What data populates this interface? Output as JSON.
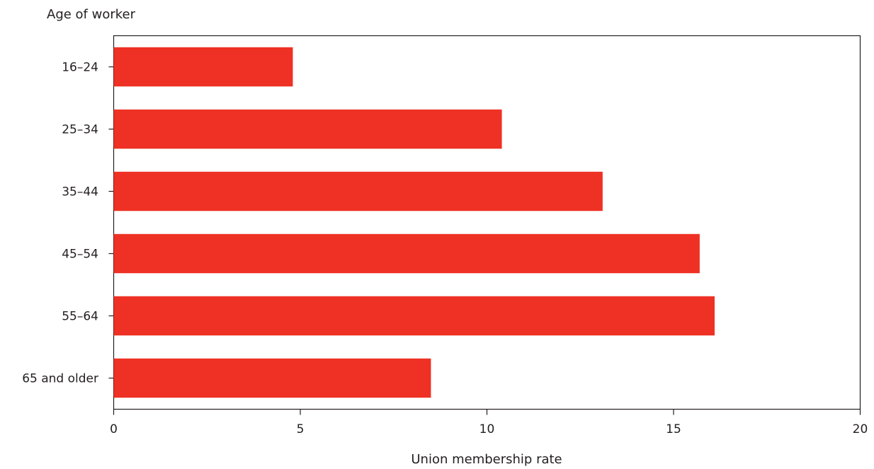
{
  "chart_data": {
    "type": "bar",
    "orientation": "horizontal",
    "categories": [
      "16–24",
      "25–34",
      "35–44",
      "45–54",
      "55–64",
      "65 and older"
    ],
    "values": [
      4.8,
      10.4,
      13.1,
      15.7,
      16.1,
      8.5
    ],
    "title": "",
    "xlabel": "Union membership rate",
    "ylabel": "Age of worker",
    "xlim": [
      0,
      20
    ],
    "xticks": [
      "0",
      "5",
      "10",
      "15",
      "20"
    ],
    "grid": false,
    "legend": "none",
    "colors": {
      "bar": "#ee3124",
      "axis": "#231f20",
      "text": "#231f20"
    }
  }
}
